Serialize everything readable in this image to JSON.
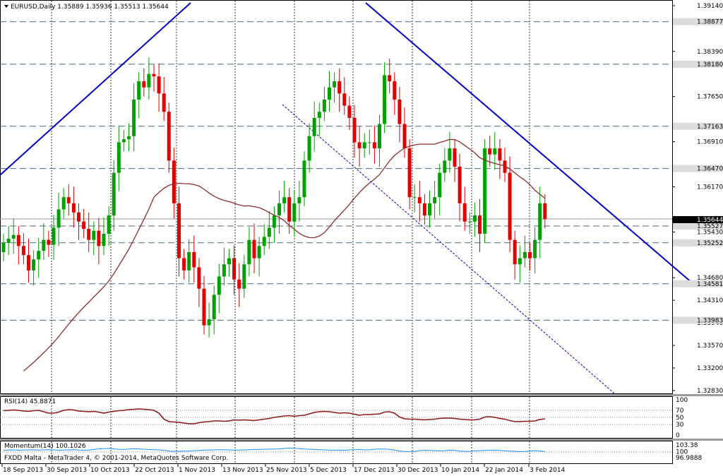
{
  "window": {
    "symbol_header": "EURUSD,Daily  1.35889 1.35936 1.35513 1.35644",
    "rsi_header": "RSI(14) 45.8871",
    "momentum_header": "Momentum(14) 100.1026",
    "copyright": "FXDD Malta - MetaTrader 4, © 2001-2014, MetaQuotes Software Corp."
  },
  "chart_data": [
    {
      "type": "candlestick",
      "title": "EURUSD,Daily",
      "ylim": [
        1.3283,
        1.3914
      ],
      "y_ticks": [
        "1.39140",
        "1.38390",
        "1.37650",
        "1.36910",
        "1.36170",
        "1.35430",
        "1.34680",
        "1.34310",
        "1.33940",
        "1.33570",
        "1.33200",
        "1.32830"
      ],
      "level_labels": [
        "1.38877",
        "1.38180",
        "1.37163",
        "1.36470",
        "1.35527",
        "1.35252",
        "1.34581",
        "1.33983"
      ],
      "price_tag": "1.35644",
      "x_tick_labels": [
        "18 Sep 2013",
        "30 Sep 2013",
        "10 Oct 2013",
        "22 Oct 2013",
        "1 Nov 2013",
        "13 Nov 2013",
        "25 Nov 2013",
        "5 Dec 2013",
        "17 Dec 2013",
        "30 Dec 2013",
        "10 Jan 2014",
        "22 Jan 2014",
        "3 Feb 2014"
      ],
      "candle_closes": [
        1.3525,
        1.3532,
        1.3538,
        1.352,
        1.3505,
        1.348,
        1.3498,
        1.3512,
        1.353,
        1.3522,
        1.355,
        1.358,
        1.36,
        1.359,
        1.3575,
        1.356,
        1.3548,
        1.353,
        1.3545,
        1.352,
        1.354,
        1.357,
        1.364,
        1.369,
        1.3695,
        1.37,
        1.376,
        1.379,
        1.378,
        1.3802,
        1.3798,
        1.377,
        1.374,
        1.366,
        1.359,
        1.35,
        1.348,
        1.351,
        1.3485,
        1.345,
        1.339,
        1.34,
        1.344,
        1.347,
        1.349,
        1.35,
        1.3465,
        1.345,
        1.349,
        1.353,
        1.35,
        1.352,
        1.3535,
        1.355,
        1.357,
        1.359,
        1.36,
        1.356,
        1.359,
        1.36,
        1.366,
        1.37,
        1.373,
        1.374,
        1.376,
        1.378,
        1.379,
        1.377,
        1.375,
        1.373,
        1.369,
        1.368,
        1.369,
        1.369,
        1.368,
        1.372,
        1.38,
        1.379,
        1.376,
        1.372,
        1.368,
        1.36,
        1.36,
        1.359,
        1.357,
        1.359,
        1.36,
        1.364,
        1.366,
        1.368,
        1.365,
        1.359,
        1.356,
        1.356,
        1.357,
        1.354,
        1.368,
        1.367,
        1.368,
        1.366,
        1.364,
        1.353,
        1.349,
        1.35,
        1.351,
        1.35,
        1.353,
        1.359,
        1.3564
      ]
    },
    {
      "type": "line",
      "title": "RSI(14) 45.8871",
      "ylim": [
        0,
        100
      ],
      "y_ticks": [
        "100",
        "70",
        "50",
        "30",
        "0"
      ],
      "values": [
        69,
        70,
        71,
        70,
        68,
        67,
        69,
        70,
        66,
        62,
        62,
        65,
        70,
        72,
        71,
        68,
        67,
        66,
        67,
        65,
        62,
        65,
        67,
        69,
        70,
        72,
        73,
        74,
        73,
        72,
        70,
        62,
        45,
        38,
        37,
        36,
        34,
        32,
        32,
        35,
        37,
        38,
        40,
        40,
        39,
        40,
        43,
        42,
        43,
        42,
        41,
        43,
        45,
        47,
        50,
        52,
        54,
        55,
        53,
        55,
        56,
        60,
        64,
        66,
        67,
        66,
        64,
        62,
        63,
        62,
        59,
        56,
        58,
        58,
        59,
        60,
        65,
        66,
        62,
        51,
        46,
        45,
        45,
        44,
        43,
        44,
        45,
        47,
        48,
        48,
        47,
        45,
        44,
        43,
        43,
        45,
        51,
        52,
        50,
        47,
        45,
        41,
        38,
        38,
        39,
        39,
        40,
        44,
        46
      ]
    },
    {
      "type": "line",
      "title": "Momentum(14) 100.1026",
      "y_ticks": [
        "103.38",
        "100",
        "96.9888"
      ],
      "values": [
        100.6,
        100.8,
        100.9,
        100.7,
        100.8,
        100.9,
        101.0,
        100.8,
        100.9,
        101.0,
        100.9,
        100.7,
        100.8,
        100.9,
        101.0,
        100.8,
        100.7,
        100.8,
        101.1,
        101.4,
        101.5,
        101.6,
        101.4,
        101.2,
        101.1,
        101.3,
        101.5,
        101.4,
        101.2,
        101.1,
        101.0,
        100.9,
        100.6,
        100.3,
        100.2,
        100.2,
        100.3,
        100.3,
        100.5,
        100.6,
        100.8,
        100.8,
        100.9,
        101.0,
        101.0,
        100.9,
        100.8,
        100.8,
        100.9,
        101.0,
        101.1,
        101.1,
        101.2,
        101.3,
        101.3,
        101.4,
        101.6,
        101.8,
        101.7,
        101.5,
        101.3,
        101.2,
        101.1,
        101.0,
        100.9,
        100.8,
        100.7,
        100.8,
        100.6,
        100.9,
        101.0,
        101.1,
        100.9,
        101.0,
        101.2,
        101.4,
        101.3,
        101.2,
        100.8,
        100.3,
        100.1,
        99.9,
        100.2,
        100.5,
        100.7,
        100.6,
        100.5,
        100.4,
        100.5,
        100.8,
        100.6,
        100.3,
        100.2,
        100.1,
        100.4,
        100.5,
        100.6,
        100.7,
        100.8,
        100.6,
        100.4,
        100.3,
        100.2,
        100.0,
        100.1,
        100.3,
        100.5,
        100.3,
        100.1
      ]
    }
  ]
}
